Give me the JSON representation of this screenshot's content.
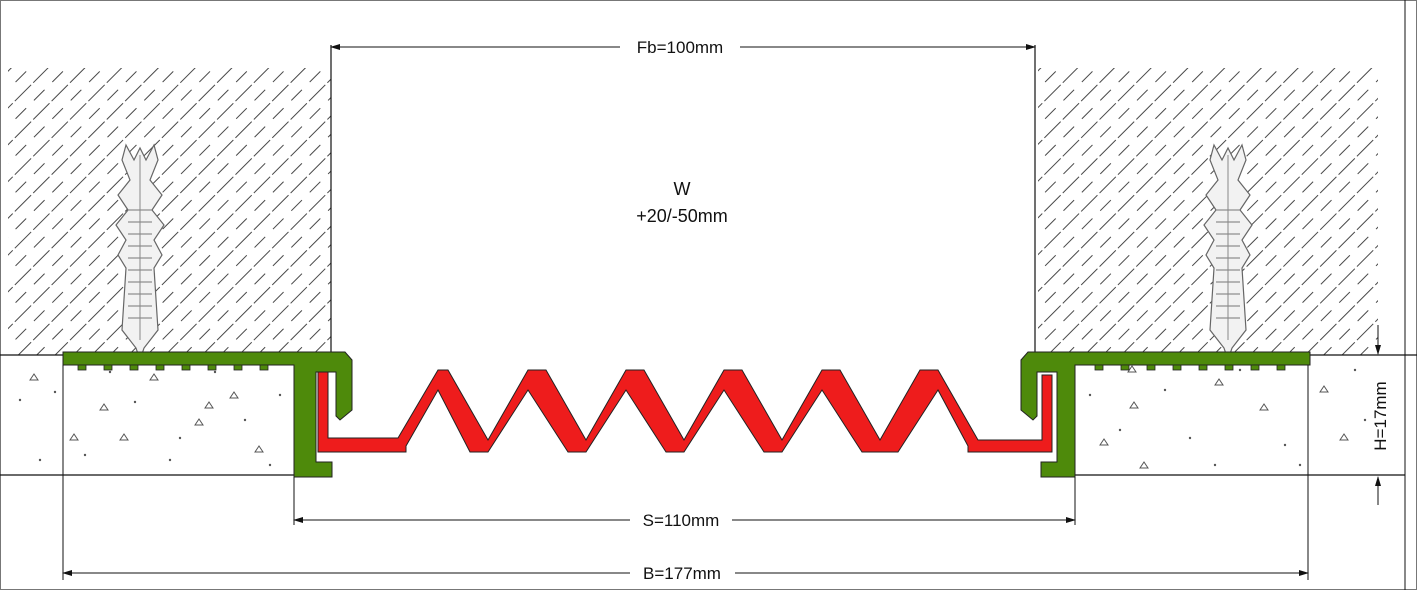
{
  "dimensions": {
    "fb": "Fb=100mm",
    "w_label": "W",
    "w_range": "+20/-50mm",
    "s": "S=110mm",
    "b": "B=177mm",
    "h": "H=17mm"
  },
  "colors": {
    "frame_green": "#4e8a0b",
    "seal_red": "#ee1c1c",
    "line": "#111111",
    "hatch": "#333333",
    "concrete_dot": "#555555"
  }
}
